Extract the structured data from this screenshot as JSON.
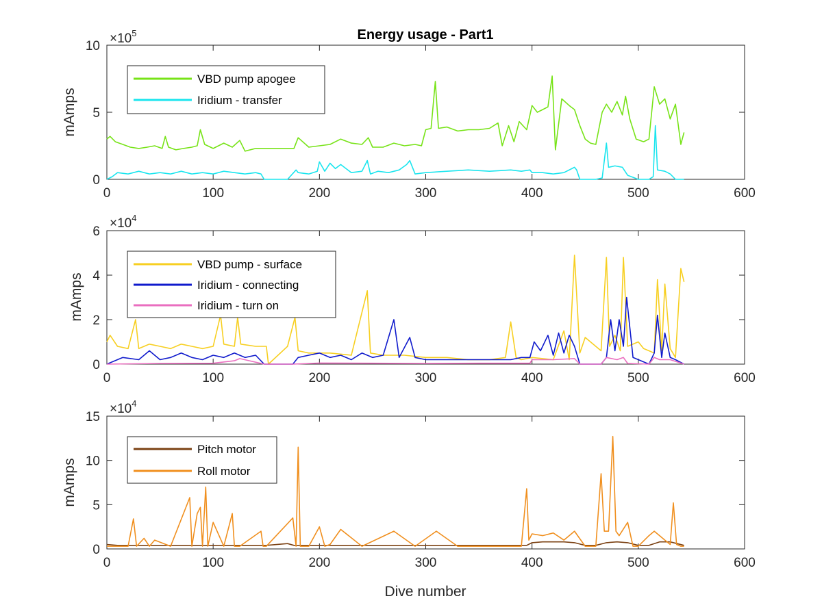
{
  "chart_data": [
    {
      "type": "line",
      "title": "Energy usage - Part1",
      "xlabel": "",
      "ylabel": "mAmps",
      "exponent_base": "×10",
      "exponent_power": "5",
      "xlim": [
        0,
        600
      ],
      "ylim": [
        0,
        1000000
      ],
      "xticks": [
        0,
        100,
        200,
        300,
        400,
        500,
        600
      ],
      "yticks": [
        0,
        500000,
        1000000
      ],
      "ytick_labels": [
        "0",
        "5",
        "10"
      ],
      "legend_position": "top-left",
      "series": [
        {
          "name": "VBD pump apogee",
          "color": "#77e317",
          "x": [
            0,
            3,
            8,
            15,
            22,
            30,
            38,
            45,
            52,
            55,
            58,
            65,
            72,
            80,
            85,
            88,
            92,
            100,
            110,
            118,
            125,
            130,
            140,
            150,
            160,
            170,
            176,
            180,
            190,
            200,
            210,
            220,
            230,
            240,
            246,
            250,
            260,
            270,
            280,
            290,
            296,
            300,
            305,
            309,
            312,
            320,
            330,
            340,
            350,
            360,
            368,
            372,
            378,
            383,
            388,
            395,
            400,
            405,
            410,
            415,
            419,
            422,
            428,
            435,
            440,
            445,
            450,
            455,
            460,
            466,
            470,
            475,
            480,
            485,
            488,
            492,
            498,
            505,
            510,
            515,
            520,
            525,
            530,
            535,
            540,
            543
          ],
          "values": [
            300000,
            320000,
            280000,
            260000,
            240000,
            230000,
            240000,
            250000,
            230000,
            320000,
            240000,
            220000,
            230000,
            240000,
            250000,
            370000,
            260000,
            230000,
            270000,
            240000,
            290000,
            210000,
            230000,
            230000,
            230000,
            230000,
            230000,
            310000,
            240000,
            250000,
            260000,
            300000,
            270000,
            260000,
            310000,
            240000,
            240000,
            270000,
            250000,
            260000,
            250000,
            370000,
            380000,
            730000,
            380000,
            390000,
            360000,
            370000,
            370000,
            380000,
            420000,
            250000,
            400000,
            280000,
            430000,
            370000,
            550000,
            500000,
            520000,
            540000,
            770000,
            220000,
            600000,
            550000,
            520000,
            400000,
            300000,
            270000,
            260000,
            500000,
            560000,
            500000,
            580000,
            480000,
            620000,
            450000,
            300000,
            280000,
            300000,
            690000,
            560000,
            600000,
            450000,
            560000,
            260000,
            350000
          ]
        },
        {
          "name": "Iridium - transfer",
          "color": "#1ae5ee",
          "x": [
            0,
            5,
            10,
            20,
            30,
            40,
            50,
            60,
            70,
            80,
            90,
            100,
            110,
            120,
            130,
            140,
            145,
            148,
            170,
            178,
            180,
            190,
            198,
            200,
            205,
            210,
            215,
            220,
            230,
            240,
            245,
            248,
            255,
            265,
            275,
            282,
            285,
            290,
            300,
            320,
            340,
            360,
            380,
            390,
            398,
            400,
            410,
            420,
            430,
            440,
            442,
            445,
            460,
            466,
            470,
            472,
            478,
            485,
            490,
            500,
            510,
            514,
            516,
            518,
            525,
            530,
            535,
            543
          ],
          "values": [
            0,
            20000,
            50000,
            40000,
            60000,
            40000,
            50000,
            40000,
            60000,
            40000,
            50000,
            40000,
            60000,
            50000,
            40000,
            50000,
            40000,
            0,
            0,
            70000,
            50000,
            40000,
            60000,
            130000,
            60000,
            120000,
            80000,
            110000,
            50000,
            60000,
            140000,
            40000,
            60000,
            50000,
            70000,
            110000,
            140000,
            40000,
            50000,
            60000,
            70000,
            60000,
            70000,
            60000,
            70000,
            50000,
            50000,
            40000,
            50000,
            90000,
            70000,
            0,
            0,
            10000,
            270000,
            90000,
            100000,
            90000,
            30000,
            0,
            0,
            20000,
            400000,
            70000,
            60000,
            40000,
            0,
            0
          ]
        }
      ]
    },
    {
      "type": "line",
      "title": "",
      "xlabel": "",
      "ylabel": "mAmps",
      "exponent_base": "×10",
      "exponent_power": "4",
      "xlim": [
        0,
        600
      ],
      "ylim": [
        0,
        60000
      ],
      "xticks": [
        0,
        100,
        200,
        300,
        400,
        500,
        600
      ],
      "yticks": [
        0,
        20000,
        40000,
        60000
      ],
      "ytick_labels": [
        "0",
        "2",
        "4",
        "6"
      ],
      "legend_position": "top-left",
      "series": [
        {
          "name": "VBD pump - surface",
          "color": "#f7cf21",
          "x": [
            0,
            3,
            10,
            20,
            27,
            30,
            40,
            50,
            60,
            70,
            80,
            90,
            100,
            107,
            110,
            120,
            123,
            126,
            140,
            150,
            152,
            170,
            177,
            180,
            190,
            200,
            210,
            230,
            245,
            248,
            260,
            280,
            300,
            320,
            340,
            360,
            375,
            380,
            385,
            390,
            400,
            420,
            430,
            435,
            440,
            445,
            450,
            455,
            465,
            470,
            473,
            478,
            483,
            486,
            490,
            500,
            505,
            510,
            515,
            518,
            522,
            525,
            530,
            535,
            540,
            543
          ],
          "values": [
            10000,
            13000,
            8000,
            7000,
            20000,
            7000,
            9000,
            8000,
            7000,
            9000,
            8000,
            7000,
            8000,
            22000,
            9000,
            8000,
            21000,
            9000,
            8000,
            8000,
            0,
            8000,
            21000,
            6000,
            5000,
            5000,
            5000,
            4000,
            33000,
            5000,
            4000,
            4000,
            3000,
            3000,
            2000,
            2000,
            3000,
            19000,
            3000,
            2000,
            3000,
            2000,
            15000,
            2000,
            49000,
            5000,
            12000,
            10000,
            6000,
            48000,
            8000,
            13000,
            6000,
            48000,
            8000,
            10000,
            7000,
            6000,
            5000,
            38000,
            6000,
            36000,
            7000,
            3000,
            43000,
            37000
          ]
        },
        {
          "name": "Iridium - connecting",
          "color": "#0f1acc",
          "x": [
            0,
            10,
            15,
            30,
            40,
            50,
            60,
            70,
            80,
            90,
            100,
            110,
            120,
            130,
            140,
            148,
            175,
            180,
            190,
            200,
            210,
            220,
            230,
            240,
            250,
            260,
            270,
            275,
            285,
            290,
            300,
            310,
            320,
            340,
            360,
            380,
            390,
            398,
            402,
            408,
            415,
            420,
            425,
            430,
            435,
            440,
            445,
            465,
            470,
            474,
            478,
            482,
            486,
            489,
            495,
            510,
            515,
            518,
            522,
            525,
            530,
            535,
            543
          ],
          "values": [
            0,
            2000,
            3000,
            2000,
            6000,
            2000,
            3000,
            5000,
            3000,
            2000,
            4000,
            3000,
            5000,
            3000,
            4000,
            0,
            0,
            3000,
            4000,
            5000,
            3000,
            4000,
            2000,
            5000,
            3000,
            4000,
            20000,
            3000,
            12000,
            3000,
            2000,
            2000,
            2000,
            2000,
            2000,
            2000,
            3000,
            3000,
            10000,
            6000,
            13000,
            4000,
            14000,
            5000,
            13000,
            8000,
            0,
            0,
            3000,
            20000,
            6000,
            20000,
            8000,
            30000,
            3000,
            0,
            5000,
            22000,
            3000,
            14000,
            3000,
            2000,
            0
          ]
        },
        {
          "name": "Iridium - turn on",
          "color": "#ea6ebf",
          "x": [
            0,
            50,
            100,
            120,
            125,
            148,
            175,
            200,
            250,
            300,
            350,
            398,
            400,
            420,
            440,
            445,
            465,
            470,
            480,
            486,
            490,
            510,
            515,
            520,
            530,
            543
          ],
          "values": [
            0,
            300,
            400,
            1500,
            2500,
            0,
            0,
            500,
            400,
            300,
            400,
            400,
            2000,
            2000,
            2500,
            0,
            0,
            3000,
            2000,
            3000,
            300,
            0,
            3000,
            2000,
            2000,
            0
          ]
        }
      ]
    },
    {
      "type": "line",
      "title": "",
      "xlabel": "Dive number",
      "ylabel": "mAmps",
      "exponent_base": "×10",
      "exponent_power": "4",
      "xlim": [
        0,
        600
      ],
      "ylim": [
        0,
        150000
      ],
      "xticks": [
        0,
        100,
        200,
        300,
        400,
        500,
        600
      ],
      "yticks": [
        0,
        50000,
        100000,
        150000
      ],
      "ytick_labels": [
        "0",
        "5",
        "10",
        "15"
      ],
      "legend_position": "top-left",
      "series": [
        {
          "name": "Pitch motor",
          "color": "#7a4012",
          "x": [
            0,
            10,
            50,
            100,
            150,
            170,
            176,
            190,
            250,
            300,
            350,
            395,
            400,
            410,
            420,
            430,
            440,
            450,
            460,
            470,
            480,
            490,
            500,
            510,
            520,
            530,
            543
          ],
          "values": [
            5000,
            4000,
            4000,
            4000,
            4000,
            6000,
            4000,
            4000,
            4000,
            4000,
            4000,
            4000,
            7000,
            8000,
            8000,
            8000,
            7000,
            4000,
            4000,
            7000,
            8000,
            7000,
            4000,
            4000,
            8000,
            8000,
            4000
          ]
        },
        {
          "name": "Roll motor",
          "color": "#f08f1e",
          "x": [
            0,
            20,
            25,
            28,
            35,
            40,
            45,
            60,
            78,
            80,
            85,
            88,
            90,
            93,
            95,
            100,
            110,
            118,
            120,
            125,
            145,
            147,
            150,
            175,
            178,
            180,
            182,
            190,
            200,
            205,
            210,
            220,
            240,
            270,
            290,
            310,
            330,
            360,
            390,
            395,
            397,
            400,
            410,
            420,
            430,
            440,
            450,
            460,
            465,
            468,
            472,
            476,
            479,
            482,
            490,
            495,
            500,
            510,
            515,
            520,
            525,
            530,
            533,
            536,
            540,
            543
          ],
          "values": [
            3000,
            3000,
            34000,
            3000,
            12000,
            3000,
            10000,
            3000,
            58000,
            3000,
            40000,
            47000,
            3000,
            70000,
            3000,
            30000,
            3000,
            40000,
            3000,
            3000,
            20000,
            3000,
            3000,
            35000,
            3000,
            115000,
            3000,
            3000,
            25000,
            3000,
            5000,
            22000,
            3000,
            20000,
            3000,
            20000,
            3000,
            3000,
            3000,
            68000,
            10000,
            17000,
            15000,
            18000,
            10000,
            20000,
            3000,
            3000,
            85000,
            20000,
            20000,
            127000,
            20000,
            15000,
            30000,
            3000,
            3000,
            15000,
            20000,
            15000,
            10000,
            5000,
            52000,
            5000,
            3000,
            3000
          ]
        }
      ]
    }
  ]
}
